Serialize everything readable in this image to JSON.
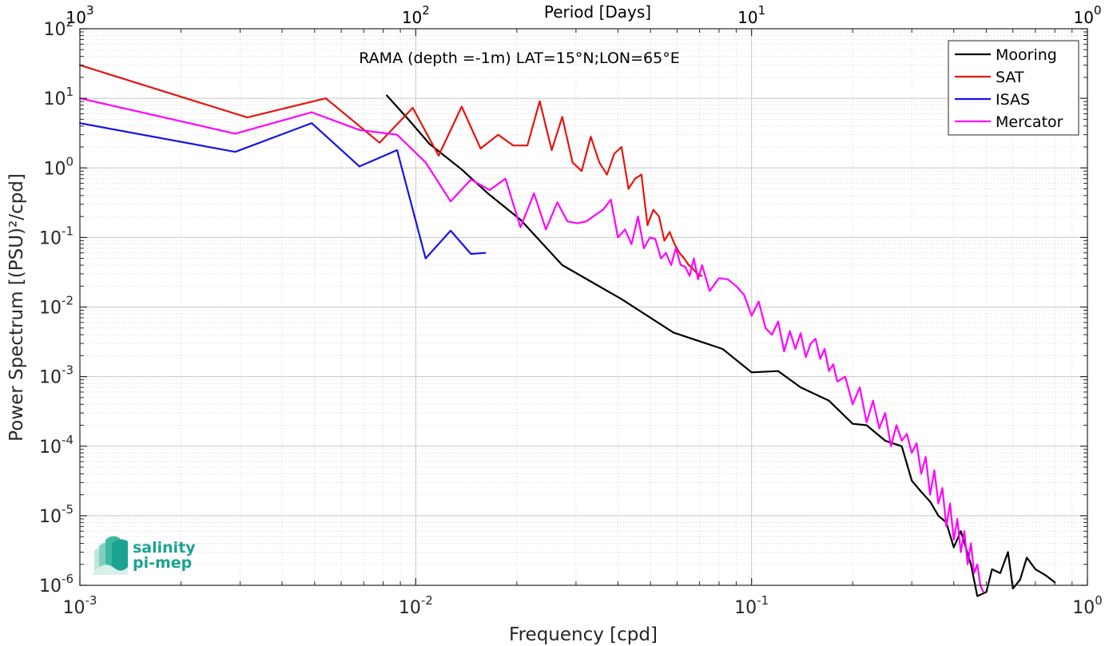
{
  "chart_data": {
    "type": "line",
    "title": "RAMA (depth =-1m) LAT=15°N;LON=65°E",
    "xlabel": "Frequency [cpd]",
    "ylabel": "Power Spectrum [(PSU)²/cpd]",
    "top_xlabel": "Period [Days]",
    "x_scale": "log",
    "y_scale": "log",
    "xlim": [
      0.001,
      1
    ],
    "ylim": [
      1e-06,
      100
    ],
    "grid": true,
    "legend_position": "top-right",
    "x_ticks": [
      {
        "value": 0.001,
        "base": "10",
        "exp": "-3"
      },
      {
        "value": 0.01,
        "base": "10",
        "exp": "-2"
      },
      {
        "value": 0.1,
        "base": "10",
        "exp": "-1"
      },
      {
        "value": 1,
        "base": "10",
        "exp": "0"
      }
    ],
    "top_ticks": [
      {
        "value": 0.001,
        "base": "10",
        "exp": "3"
      },
      {
        "value": 0.01,
        "base": "10",
        "exp": "2"
      },
      {
        "value": 0.1,
        "base": "10",
        "exp": "1"
      },
      {
        "value": 1,
        "base": "10",
        "exp": "0"
      }
    ],
    "y_ticks": [
      {
        "value": 100,
        "base": "10",
        "exp": "2"
      },
      {
        "value": 10,
        "base": "10",
        "exp": "1"
      },
      {
        "value": 1,
        "base": "10",
        "exp": "0"
      },
      {
        "value": 0.1,
        "base": "10",
        "exp": "-1"
      },
      {
        "value": 0.01,
        "base": "10",
        "exp": "-2"
      },
      {
        "value": 0.001,
        "base": "10",
        "exp": "-3"
      },
      {
        "value": 0.0001,
        "base": "10",
        "exp": "-4"
      },
      {
        "value": 1e-05,
        "base": "10",
        "exp": "-5"
      },
      {
        "value": 1e-06,
        "base": "10",
        "exp": "-6"
      }
    ],
    "series": [
      {
        "name": "Mooring",
        "color": "#000000",
        "x": [
          0.0082,
          0.0095,
          0.011,
          0.0137,
          0.0164,
          0.0205,
          0.0273,
          0.041,
          0.0585,
          0.082,
          0.1,
          0.12,
          0.14,
          0.17,
          0.2,
          0.22,
          0.25,
          0.28,
          0.3,
          0.32,
          0.34,
          0.36,
          0.38,
          0.4,
          0.42,
          0.45,
          0.47,
          0.5,
          0.52,
          0.55,
          0.58,
          0.6,
          0.63,
          0.66,
          0.7,
          0.75,
          0.8
        ],
        "y": [
          11,
          5,
          2.2,
          0.95,
          0.43,
          0.18,
          0.04,
          0.013,
          0.0043,
          0.0025,
          0.00115,
          0.0012,
          0.0007,
          0.00045,
          0.00021,
          0.0002,
          0.00012,
          0.0001,
          3.2e-05,
          2.2e-05,
          1.6e-05,
          1e-05,
          8e-06,
          3.5e-06,
          6e-06,
          2e-06,
          7e-07,
          8e-07,
          1.7e-06,
          1.5e-06,
          3e-06,
          9e-07,
          1.2e-06,
          2.5e-06,
          1.7e-06,
          1.4e-06,
          1.1e-06
        ]
      },
      {
        "name": "SAT",
        "color": "#e6140d",
        "x": [
          0.001,
          0.00315,
          0.0054,
          0.0078,
          0.0098,
          0.0117,
          0.0137,
          0.0156,
          0.0176,
          0.0195,
          0.0215,
          0.0234,
          0.0254,
          0.0273,
          0.0293,
          0.0312,
          0.0332,
          0.0352,
          0.0371,
          0.039,
          0.041,
          0.043,
          0.045,
          0.047,
          0.049,
          0.051,
          0.053,
          0.055,
          0.057,
          0.059,
          0.061,
          0.063,
          0.065,
          0.067,
          0.069,
          0.071
        ],
        "y": [
          30,
          5.3,
          10,
          2.3,
          7.3,
          1.5,
          7.6,
          1.9,
          3.0,
          2.1,
          2.1,
          9.1,
          1.8,
          5.4,
          1.2,
          0.9,
          2.8,
          1.2,
          0.8,
          1.6,
          2.0,
          0.5,
          0.7,
          0.8,
          0.15,
          0.25,
          0.2,
          0.09,
          0.12,
          0.08,
          0.06,
          0.05,
          0.04,
          0.035,
          0.03,
          0.028
        ]
      },
      {
        "name": "ISAS",
        "color": "#1414e6",
        "x": [
          0.001,
          0.0029,
          0.0049,
          0.0068,
          0.0088,
          0.0107,
          0.0127,
          0.0146,
          0.0161
        ],
        "y": [
          4.4,
          1.7,
          4.4,
          1.05,
          1.8,
          0.05,
          0.125,
          0.058,
          0.06
        ]
      },
      {
        "name": "Mercator",
        "color": "#ff00ff",
        "x": [
          0.001,
          0.0029,
          0.0049,
          0.0068,
          0.0088,
          0.0107,
          0.0127,
          0.0146,
          0.0166,
          0.0185,
          0.0205,
          0.0225,
          0.0244,
          0.0264,
          0.0283,
          0.0303,
          0.0322,
          0.0342,
          0.0361,
          0.0381,
          0.04,
          0.042,
          0.0439,
          0.0459,
          0.0478,
          0.0498,
          0.0517,
          0.0537,
          0.0556,
          0.0576,
          0.0595,
          0.0615,
          0.0634,
          0.0654,
          0.0673,
          0.0693,
          0.0712,
          0.075,
          0.08,
          0.085,
          0.09,
          0.095,
          0.1,
          0.105,
          0.11,
          0.115,
          0.12,
          0.125,
          0.13,
          0.135,
          0.14,
          0.145,
          0.15,
          0.155,
          0.16,
          0.165,
          0.17,
          0.175,
          0.18,
          0.19,
          0.2,
          0.21,
          0.22,
          0.23,
          0.24,
          0.25,
          0.26,
          0.27,
          0.28,
          0.29,
          0.3,
          0.31,
          0.32,
          0.33,
          0.34,
          0.35,
          0.36,
          0.37,
          0.38,
          0.39,
          0.4,
          0.41,
          0.42,
          0.43,
          0.44,
          0.45,
          0.46,
          0.47,
          0.48,
          0.49
        ],
        "y": [
          10,
          3.1,
          6.3,
          3.5,
          3.0,
          1.2,
          0.33,
          0.68,
          0.48,
          0.7,
          0.14,
          0.43,
          0.13,
          0.32,
          0.17,
          0.16,
          0.17,
          0.21,
          0.25,
          0.35,
          0.1,
          0.13,
          0.08,
          0.2,
          0.07,
          0.1,
          0.095,
          0.05,
          0.06,
          0.04,
          0.07,
          0.04,
          0.038,
          0.028,
          0.05,
          0.025,
          0.04,
          0.017,
          0.026,
          0.025,
          0.02,
          0.015,
          0.0075,
          0.012,
          0.005,
          0.004,
          0.0062,
          0.0023,
          0.0045,
          0.0025,
          0.0042,
          0.0019,
          0.003,
          0.0035,
          0.0018,
          0.0025,
          0.0012,
          0.0015,
          0.00085,
          0.001,
          0.0004,
          0.0007,
          0.00022,
          0.00045,
          0.00018,
          0.0003,
          0.0001,
          0.0002,
          0.00012,
          0.00015,
          8e-05,
          0.00011,
          4e-05,
          7e-05,
          2e-05,
          4.5e-05,
          1.5e-05,
          2.5e-05,
          7e-06,
          1.5e-05,
          4.5e-06,
          9e-06,
          3e-06,
          6e-06,
          2e-06,
          4e-06,
          1.5e-06,
          2e-06,
          1e-06,
          8e-07
        ]
      }
    ]
  },
  "logo": {
    "line1": "salinity",
    "line2": "pi-mep",
    "color": "#1aa391"
  }
}
